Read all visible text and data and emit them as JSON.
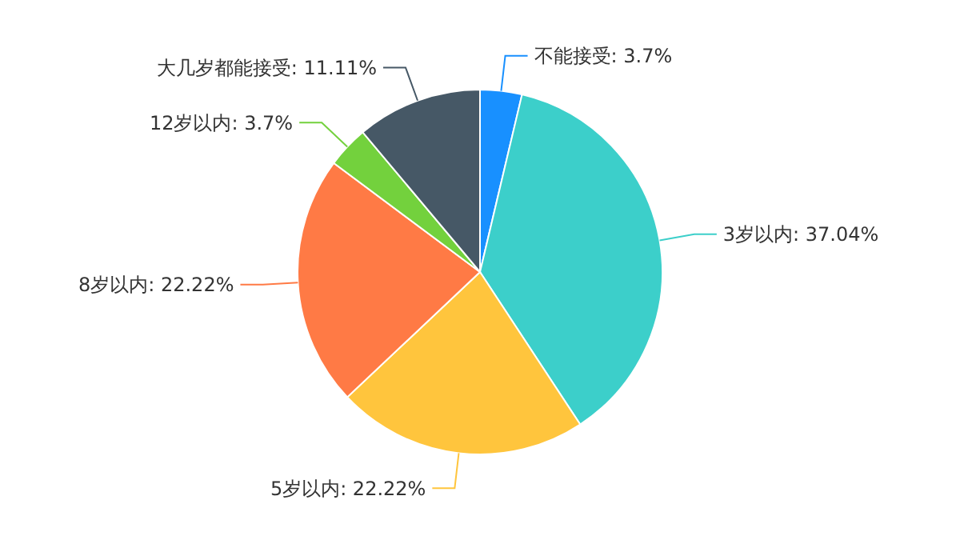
{
  "chart_data": {
    "type": "pie",
    "categories": [
      "不能接受",
      "3岁以内",
      "5岁以内",
      "8岁以内",
      "12岁以内",
      "大几岁都能接受"
    ],
    "values": [
      3.7,
      37.04,
      22.22,
      22.22,
      3.7,
      11.11
    ],
    "colors": [
      "#1890ff",
      "#3ccfca",
      "#ffc53d",
      "#ff7a45",
      "#73d13d",
      "#465866"
    ],
    "value_labels": [
      "3.7%",
      "37.04%",
      "22.22%",
      "22.22%",
      "3.7%",
      "11.11%"
    ]
  }
}
